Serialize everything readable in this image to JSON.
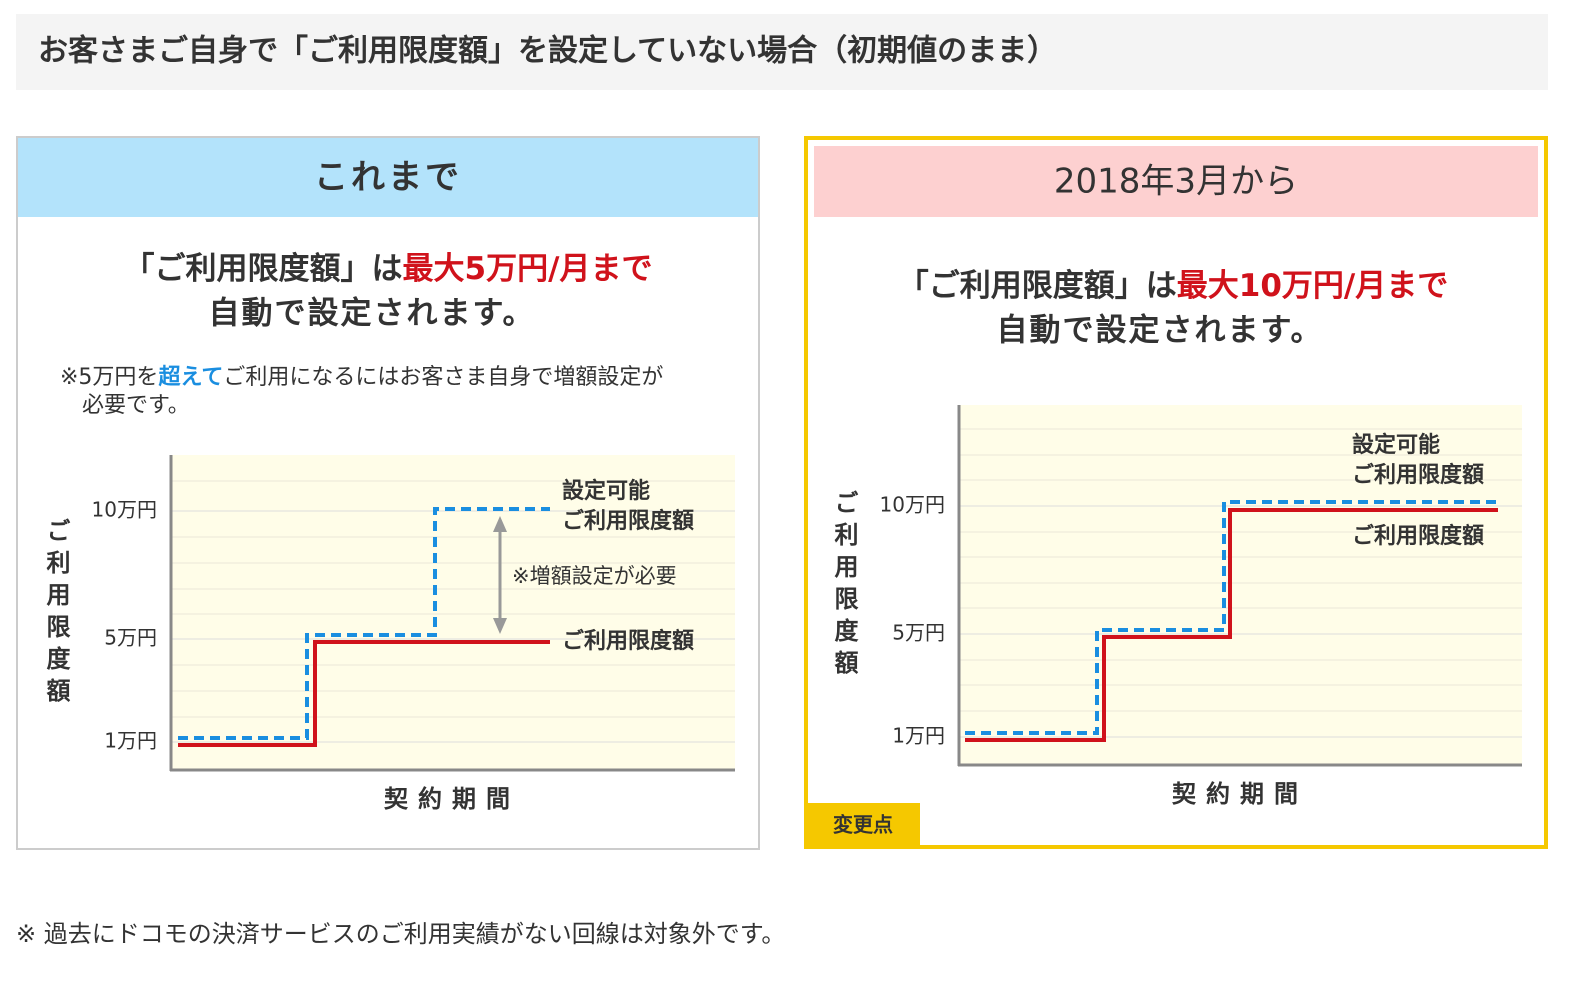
{
  "header": {
    "title": "お客さまご自身で「ご利用限度額」を設定していない場合（初期値のまま）"
  },
  "panels": [
    {
      "heading": "これまで",
      "lead": [
        "「ご利用限度額」は",
        "最大5万円/月まで"
      ],
      "lead_line2": "自動で設定されます。",
      "note_line1": [
        "※5万円を",
        "超えて",
        "ご利用になるにはお客さま自身で増額設定が"
      ],
      "note_line2": "必要です。",
      "diagram": {
        "y_label": "ご利用限度額",
        "ticks": [
          "10万円",
          "5万円",
          "1万円"
        ],
        "x_label": "契約期間",
        "settable_label": [
          "設定可能",
          "ご利用限度額"
        ],
        "limit_label": "ご利用限度額",
        "annotation": "※増額設定が必要"
      }
    },
    {
      "heading": "2018年3月から",
      "lead": [
        "「ご利用限度額」は",
        "最大10万円/月まで"
      ],
      "lead_line2": "自動で設定されます。",
      "diagram": {
        "y_label": "ご利用限度額",
        "ticks": [
          "10万円",
          "5万円",
          "1万円"
        ],
        "x_label": "契約期間",
        "settable_label": [
          "設定可能",
          "ご利用限度額"
        ],
        "limit_label": "ご利用限度額"
      },
      "badge": "変更点"
    }
  ],
  "footnote": "※ 過去にドコモの決済サービスのご利用実績がない回線は対象外です。"
}
